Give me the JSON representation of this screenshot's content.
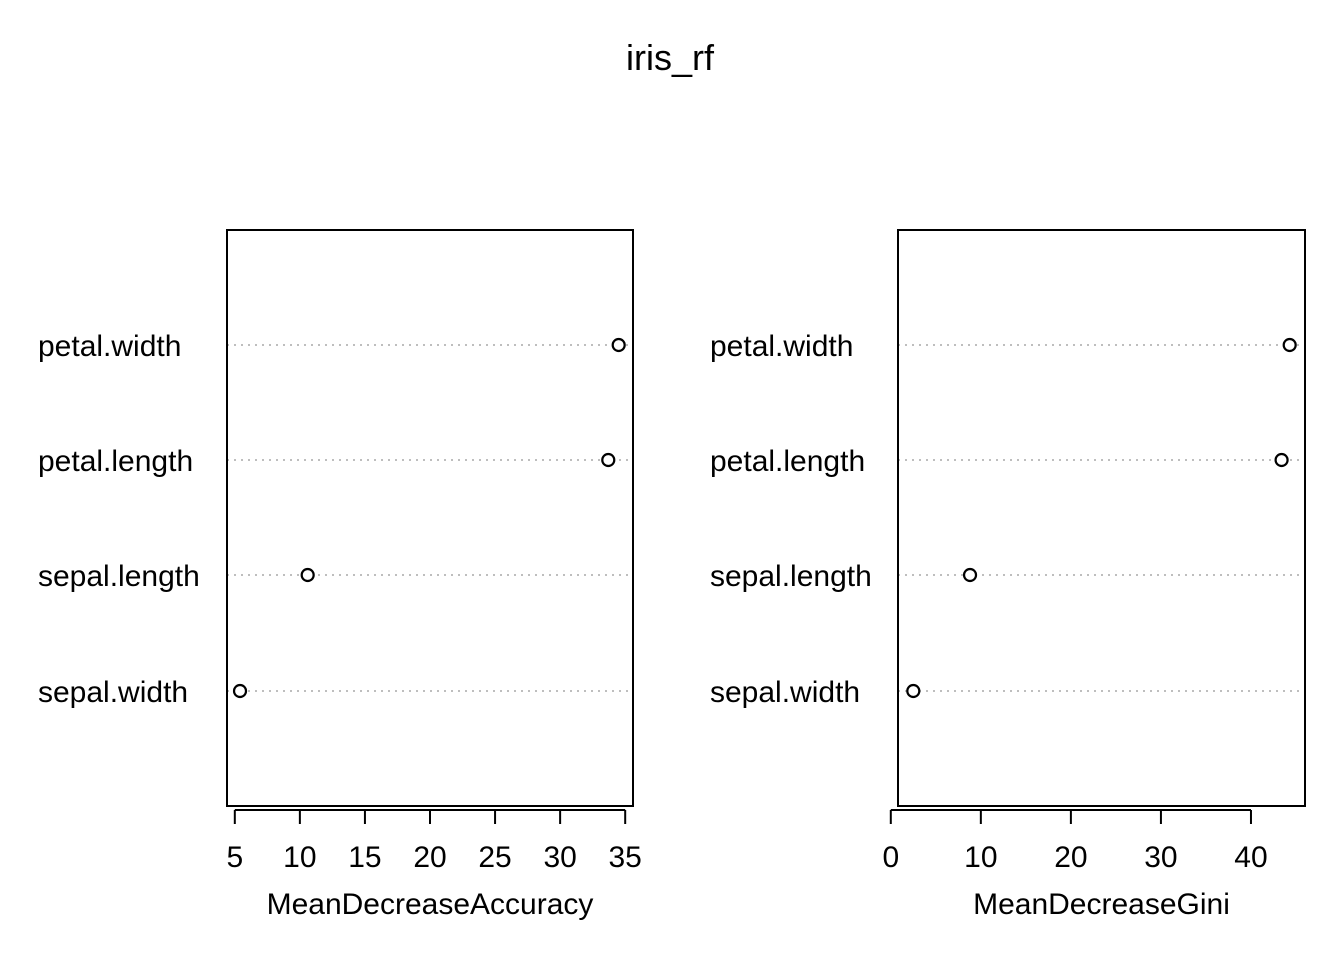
{
  "title": "iris_rf",
  "chart_data": [
    {
      "type": "scatter",
      "subtype": "dotchart",
      "xlabel": "MeanDecreaseAccuracy",
      "ylabel": "",
      "categories": [
        "sepal.width",
        "sepal.length",
        "petal.length",
        "petal.width"
      ],
      "values": [
        5.4,
        10.6,
        33.7,
        34.5
      ],
      "xticks": [
        5,
        10,
        15,
        20,
        25,
        30,
        35
      ],
      "xlim": [
        4.4,
        35.6
      ],
      "grid": "dotted horizontal",
      "marker": "open-circle"
    },
    {
      "type": "scatter",
      "subtype": "dotchart",
      "xlabel": "MeanDecreaseGini",
      "ylabel": "",
      "categories": [
        "sepal.width",
        "sepal.length",
        "petal.length",
        "petal.width"
      ],
      "values": [
        2.5,
        8.8,
        43.4,
        44.3
      ],
      "xticks": [
        0,
        10,
        20,
        30,
        40
      ],
      "xlim": [
        0.8,
        46.0
      ],
      "grid": "dotted horizontal",
      "marker": "open-circle"
    }
  ],
  "colors": {
    "grid": "#bebebe",
    "axis": "#000000",
    "background": "#ffffff"
  }
}
